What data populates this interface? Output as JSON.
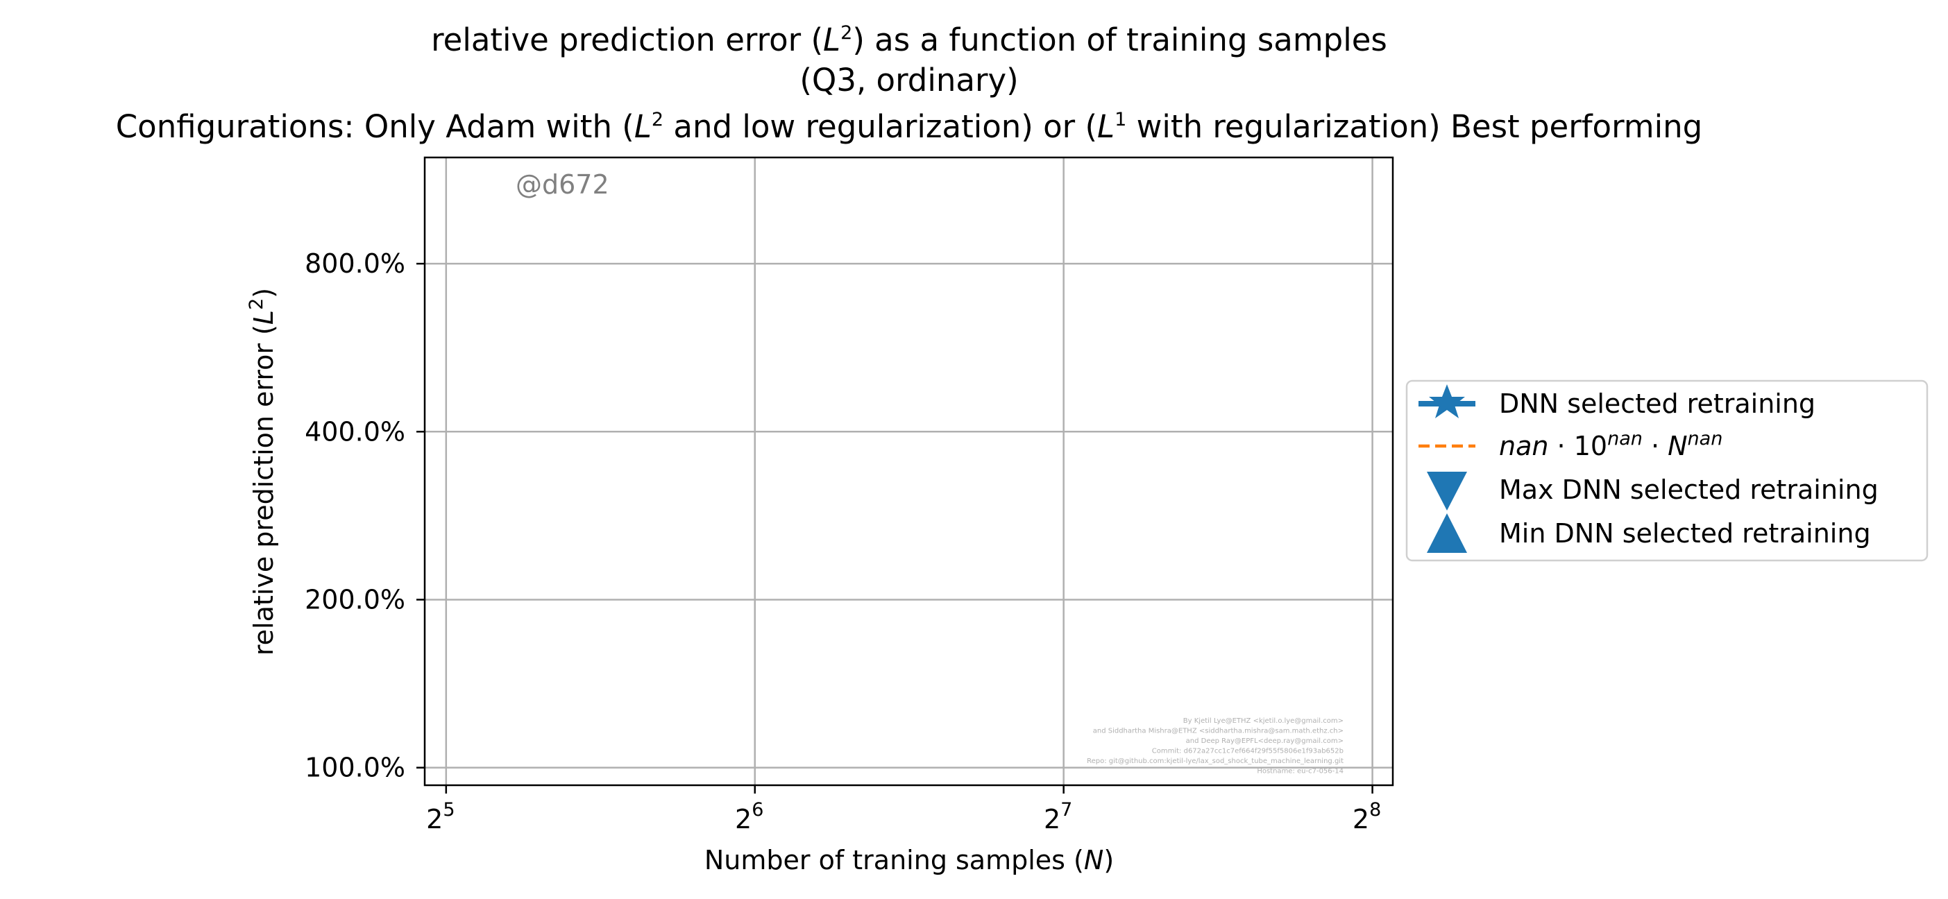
{
  "chart_data": {
    "type": "line",
    "title_lines": [
      "relative prediction error (L²) as a function of training samples",
      "(Q3, ordinary)",
      "Configurations: Only Adam with (L² and low regularization) or (L¹ with regularization) Best performing"
    ],
    "xlabel": "Number of traning samples (N)",
    "ylabel": "relative prediction error (L²)",
    "x_scale": "log2",
    "y_scale": "log",
    "x_ticks": [
      {
        "value": 32,
        "base": "2",
        "exp": "5"
      },
      {
        "value": 64,
        "base": "2",
        "exp": "6"
      },
      {
        "value": 128,
        "base": "2",
        "exp": "7"
      },
      {
        "value": 256,
        "base": "2",
        "exp": "8"
      }
    ],
    "y_ticks": [
      {
        "value": 1,
        "label": "100.0%"
      },
      {
        "value": 2,
        "label": "200.0%"
      },
      {
        "value": 4,
        "label": "400.0%"
      },
      {
        "value": 8,
        "label": "800.0%"
      }
    ],
    "xlim": [
      30.5,
      268
    ],
    "ylim": [
      0.93,
      12.4
    ],
    "grid": true,
    "legend_position": "outside right",
    "series": [
      {
        "name": "DNN selected retraining",
        "marker": "star",
        "linestyle": "solid",
        "color": "#1f77b4",
        "x": [],
        "y": []
      },
      {
        "name": "nan · 10^nan · N^nan",
        "marker": "none",
        "linestyle": "dashed",
        "color": "#ff7f0e",
        "x": [],
        "y": []
      },
      {
        "name": "Max DNN selected retraining",
        "marker": "triangle-down",
        "linestyle": "none",
        "color": "#1f77b4",
        "x": [],
        "y": []
      },
      {
        "name": "Min DNN selected retraining",
        "marker": "triangle-up",
        "linestyle": "none",
        "color": "#1f77b4",
        "x": [],
        "y": []
      }
    ],
    "watermark": "@d672",
    "credits": [
      "By Kjetil Lye@ETHZ <kjetil.o.lye@gmail.com>",
      "and Siddhartha Mishra@ETHZ <siddhartha.mishra@sam.math.ethz.ch>",
      "and Deep Ray@EPFL<deep.ray@gmail.com>",
      "Commit: d672a27cc1c7ef664f29f55f5806e1f93ab652b",
      "Repo: git@github.com:kjetil-lye/lax_sod_shock_tube_machine_learning.git",
      "Hostname: eu-c7-056-14"
    ]
  },
  "title": {
    "line1_pre": "relative prediction error (",
    "line1_post": ") as a function of training samples",
    "line2": "(Q3, ordinary)",
    "line3_a": "Configurations: Only Adam with (",
    "line3_b": " and low regularization) or (",
    "line3_c": " with regularization) Best performing",
    "L": "L",
    "two": "2",
    "one": "1"
  },
  "axes": {
    "xlabel_pre": "Number of traning samples (",
    "xlabel_N": "N",
    "xlabel_post": ")",
    "ylabel_pre": "relative prediction error (",
    "ylabel_post": ")"
  },
  "legend": {
    "item1": "DNN selected retraining",
    "item2_nan": "nan",
    "item2_dot": " · ",
    "item2_ten": "10",
    "item2_N": "N",
    "item3": "Max DNN selected retraining",
    "item4": "Min DNN selected retraining"
  },
  "colors": {
    "blue": "#1f77b4",
    "orange": "#ff7f0e",
    "grid": "#b0b0b0"
  }
}
